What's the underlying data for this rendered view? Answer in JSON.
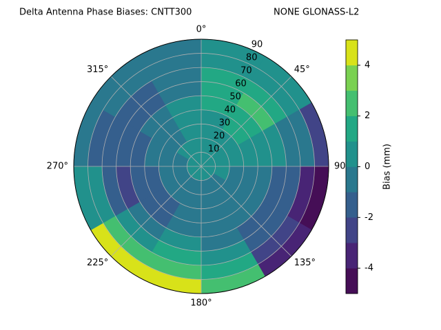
{
  "chart_data": {
    "type": "polar_contour",
    "title": "Delta Antenna Phase Biases: CNTT300",
    "subtitle": "NONE GLONASS-L2",
    "theta_bins": [
      0,
      30,
      60,
      90,
      120,
      150,
      180,
      210,
      240,
      270,
      300,
      330,
      360
    ],
    "r_bins": [
      0,
      10,
      20,
      30,
      40,
      50,
      60,
      70,
      80,
      90
    ],
    "values": [
      [
        0.5,
        0.5,
        0.5,
        1,
        1.5,
        1.5,
        1.5,
        0.5,
        0.5
      ],
      [
        0.5,
        0.5,
        1,
        1.5,
        2,
        2.5,
        1.5,
        1,
        0.5
      ],
      [
        0.5,
        0.5,
        0.5,
        1,
        1,
        0.5,
        0,
        -0.5,
        -2
      ],
      [
        0.5,
        0.5,
        0,
        0,
        -0.5,
        -1,
        -1.5,
        -3,
        -4.5
      ],
      [
        0.5,
        0,
        0,
        -0.5,
        -0.5,
        -1,
        -1.5,
        -2,
        -3.5
      ],
      [
        0.5,
        0,
        -0.5,
        -0.5,
        -0.5,
        0,
        1,
        2,
        3
      ],
      [
        0.5,
        0,
        -0.5,
        -0.5,
        -0.5,
        0.5,
        1.5,
        3,
        4.5
      ],
      [
        0.5,
        0,
        -0.5,
        -1,
        -1,
        -0.5,
        1,
        3,
        4.5
      ],
      [
        0.5,
        0,
        -0.5,
        -1,
        -1.5,
        -2,
        -1.5,
        0.5,
        1
      ],
      [
        0.5,
        0,
        -0.5,
        -0.5,
        -1,
        -1.5,
        -1.5,
        -1,
        -0.5
      ],
      [
        0.5,
        0.5,
        0,
        -0.5,
        -0.5,
        -1,
        -1,
        -0.5,
        -0.5
      ],
      [
        0.5,
        0.5,
        0.5,
        0.5,
        0.5,
        0,
        0,
        0,
        -0.5
      ]
    ],
    "rlim": [
      0,
      90
    ],
    "rticks": [
      10,
      20,
      30,
      40,
      50,
      60,
      70,
      80,
      90
    ],
    "thetaticks": [
      {
        "value": 0,
        "label": "0°"
      },
      {
        "value": 45,
        "label": "45°"
      },
      {
        "value": 90,
        "label": "90°"
      },
      {
        "value": 135,
        "label": "135°"
      },
      {
        "value": 180,
        "label": "180°"
      },
      {
        "value": 225,
        "label": "225°"
      },
      {
        "value": 270,
        "label": "270°"
      },
      {
        "value": 315,
        "label": "315°"
      }
    ],
    "levels": [
      -5,
      -4,
      -3,
      -2,
      -1,
      0,
      1,
      2,
      3,
      4,
      5
    ],
    "colors": [
      "#450e56",
      "#482475",
      "#414487",
      "#355f8d",
      "#2a788e",
      "#21918c",
      "#22a884",
      "#44bf70",
      "#7ad151",
      "#d8e219"
    ],
    "clim": [
      -5,
      5
    ],
    "cticks": [
      -4,
      -2,
      0,
      2,
      4
    ],
    "colorbar_label": "Bias (mm)",
    "grid": true
  }
}
